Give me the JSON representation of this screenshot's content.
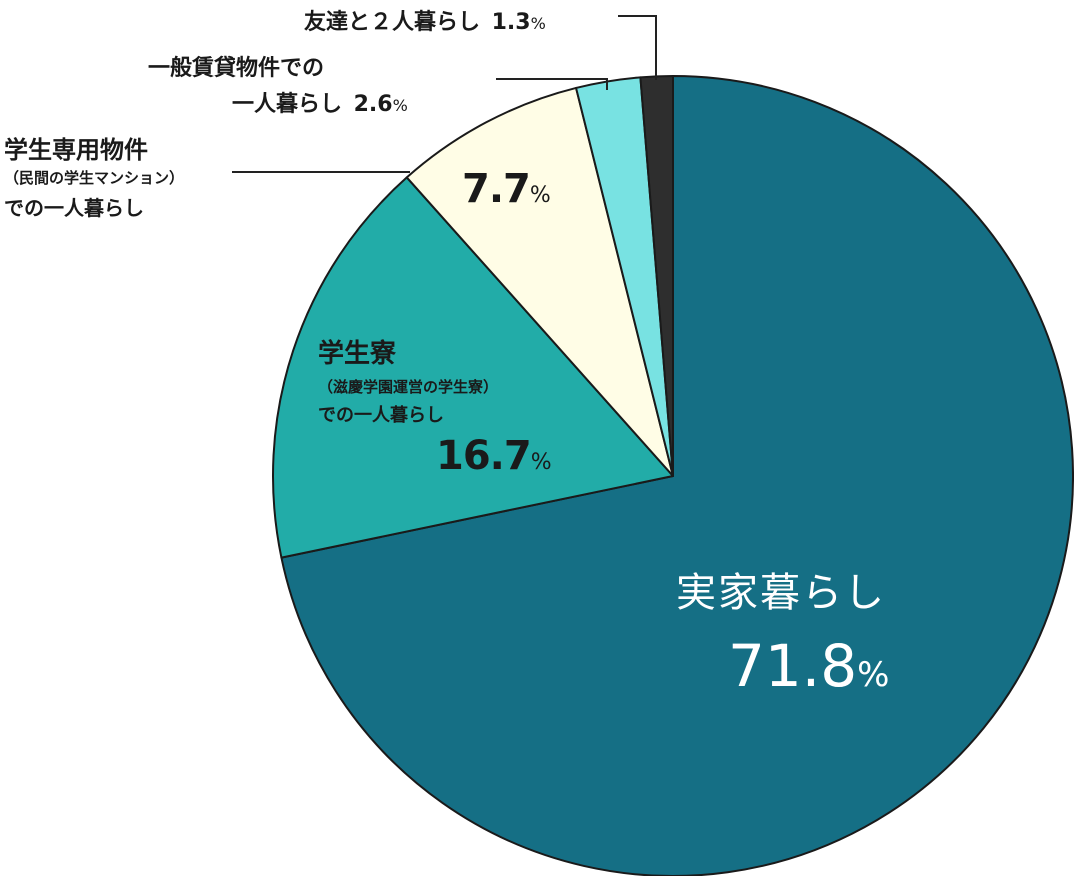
{
  "chart_data": {
    "type": "pie",
    "start": "12 o'clock, clockwise",
    "slices": [
      {
        "label": "実家暮らし",
        "value": 71.8,
        "color": "#156f85"
      },
      {
        "label": "学生寮（滋慶学園運営の学生寮）での一人暮らし",
        "value": 16.7,
        "color": "#22aca8"
      },
      {
        "label": "学生専用物件（民間の学生マンション）での一人暮らし",
        "value": 7.7,
        "color": "#fffde6"
      },
      {
        "label": "一般賃貸物件での一人暮らし",
        "value": 2.6,
        "color": "#78e2e2"
      },
      {
        "label": "友達と２人暮らし",
        "value": 1.3,
        "color": "#2e2e2e"
      }
    ]
  },
  "labels": {
    "jikka_title": "実家暮らし",
    "jikka_value": "71.8",
    "ryo_title": "学生寮",
    "ryo_sub": "（滋慶学園運営の学生寮）",
    "ryo_sub2": "での一人暮らし",
    "ryo_value": "16.7",
    "senyo_title": "学生専用物件",
    "senyo_sub": "（民間の学生マンション）",
    "senyo_sub2": "での一人暮らし",
    "senyo_value": "7.7",
    "ippan_line1": "一般賃貸物件での",
    "ippan_line2": "一人暮らし",
    "ippan_value": "2.6",
    "tomodachi": "友達と２人暮らし",
    "tomodachi_value": "1.3",
    "pct": "%"
  }
}
